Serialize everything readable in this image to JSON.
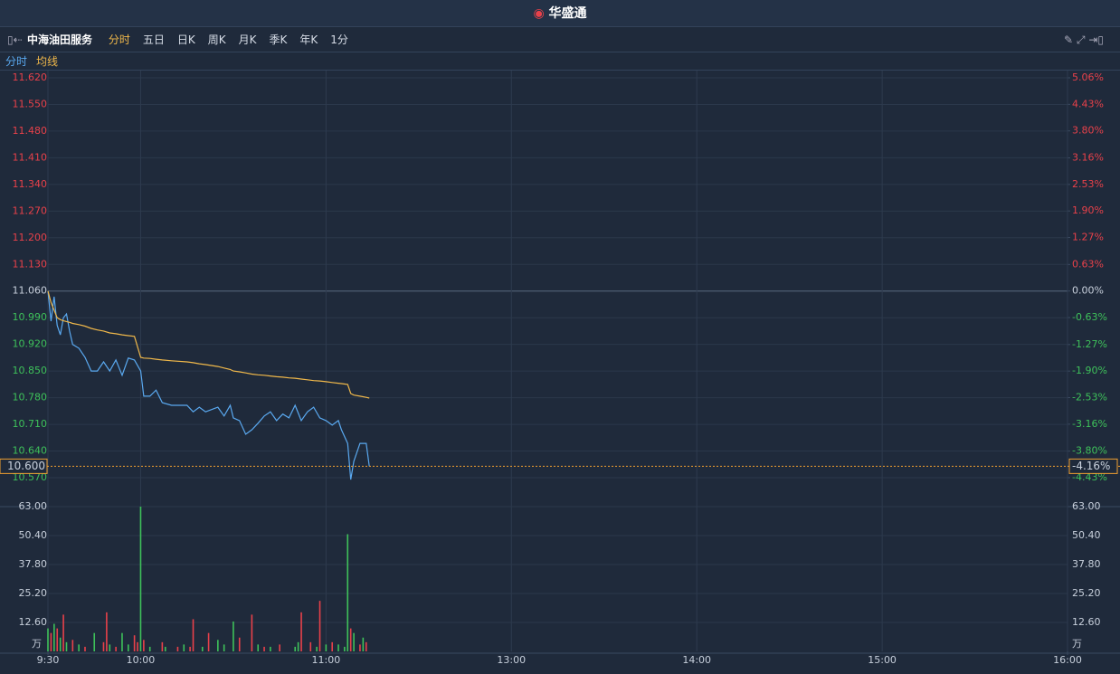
{
  "header": {
    "title": "华盛通"
  },
  "toolbar": {
    "stock": "中海油田服务",
    "tabs": [
      "分时",
      "五日",
      "日K",
      "周K",
      "月K",
      "季K",
      "年K",
      "1分"
    ],
    "active": 0
  },
  "chart_data": {
    "type": "line",
    "legend": [
      "分时",
      "均线"
    ],
    "x": [
      0,
      1,
      2,
      3,
      4,
      5,
      6,
      7,
      8,
      10,
      12,
      14,
      16,
      18,
      20,
      22,
      24,
      26,
      28,
      30,
      31,
      33,
      35,
      37,
      40,
      45,
      47,
      49,
      51,
      55,
      57,
      59,
      60,
      62,
      64,
      66,
      68,
      70,
      72,
      74,
      76,
      78,
      80,
      82,
      84,
      86,
      88,
      90,
      92,
      94,
      95,
      97,
      98,
      99,
      101,
      103,
      104
    ],
    "xlim": [
      0,
      330
    ],
    "xticks": [
      {
        "value": 0,
        "label": "9:30"
      },
      {
        "value": 30,
        "label": "10:00"
      },
      {
        "value": 90,
        "label": "11:00"
      },
      {
        "value": 150,
        "label": "13:00"
      },
      {
        "value": 210,
        "label": "14:00"
      },
      {
        "value": 270,
        "label": "15:00"
      },
      {
        "value": 330,
        "label": "16:00"
      }
    ],
    "series": [
      {
        "name": "分时",
        "color": "#5aa9f0",
        "values": [
          11.06,
          10.981,
          11.045,
          10.97,
          10.945,
          10.99,
          11.0,
          10.955,
          10.92,
          10.91,
          10.886,
          10.85,
          10.85,
          10.874,
          10.85,
          10.879,
          10.839,
          10.884,
          10.879,
          10.85,
          10.784,
          10.784,
          10.8,
          10.767,
          10.76,
          10.76,
          10.743,
          10.755,
          10.743,
          10.755,
          10.732,
          10.76,
          10.727,
          10.72,
          10.684,
          10.696,
          10.713,
          10.732,
          10.743,
          10.72,
          10.737,
          10.727,
          10.76,
          10.72,
          10.743,
          10.755,
          10.727,
          10.72,
          10.708,
          10.72,
          10.696,
          10.66,
          10.565,
          10.613,
          10.66,
          10.66,
          10.6
        ]
      },
      {
        "name": "均线",
        "color": "#f0b84a",
        "values": [
          11.06,
          11.03,
          11.01,
          10.99,
          10.985,
          10.982,
          10.98,
          10.978,
          10.975,
          10.972,
          10.968,
          10.962,
          10.958,
          10.955,
          10.95,
          10.948,
          10.945,
          10.943,
          10.941,
          10.886,
          10.884,
          10.883,
          10.881,
          10.879,
          10.877,
          10.874,
          10.872,
          10.869,
          10.867,
          10.862,
          10.858,
          10.854,
          10.85,
          10.848,
          10.845,
          10.842,
          10.84,
          10.839,
          10.837,
          10.835,
          10.834,
          10.832,
          10.831,
          10.829,
          10.827,
          10.825,
          10.824,
          10.822,
          10.82,
          10.818,
          10.817,
          10.815,
          10.791,
          10.787,
          10.784,
          10.781,
          10.779
        ]
      }
    ],
    "ylim": [
      10.57,
      11.62
    ],
    "yticks": [
      {
        "value": 11.62,
        "label": "11.620"
      },
      {
        "value": 11.55,
        "label": "11.550"
      },
      {
        "value": 11.48,
        "label": "11.480"
      },
      {
        "value": 11.41,
        "label": "11.410"
      },
      {
        "value": 11.34,
        "label": "11.340"
      },
      {
        "value": 11.27,
        "label": "11.270"
      },
      {
        "value": 11.2,
        "label": "11.200"
      },
      {
        "value": 11.13,
        "label": "11.130"
      },
      {
        "value": 11.06,
        "label": "11.060"
      },
      {
        "value": 10.99,
        "label": "10.990"
      },
      {
        "value": 10.92,
        "label": "10.920"
      },
      {
        "value": 10.85,
        "label": "10.850"
      },
      {
        "value": 10.78,
        "label": "10.780"
      },
      {
        "value": 10.71,
        "label": "10.710"
      },
      {
        "value": 10.64,
        "label": "10.640"
      },
      {
        "value": 10.57,
        "label": "10.570"
      }
    ],
    "y2lim": [
      -4.43,
      5.06
    ],
    "y2ticks": [
      {
        "value": 5.06,
        "label": "5.06%"
      },
      {
        "value": 4.43,
        "label": "4.43%"
      },
      {
        "value": 3.8,
        "label": "3.80%"
      },
      {
        "value": 3.16,
        "label": "3.16%"
      },
      {
        "value": 2.53,
        "label": "2.53%"
      },
      {
        "value": 1.9,
        "label": "1.90%"
      },
      {
        "value": 1.27,
        "label": "1.27%"
      },
      {
        "value": 0.63,
        "label": "0.63%"
      },
      {
        "value": 0,
        "label": "0.00%"
      },
      {
        "value": -0.63,
        "label": "-0.63%"
      },
      {
        "value": -1.27,
        "label": "-1.27%"
      },
      {
        "value": -1.9,
        "label": "-1.90%"
      },
      {
        "value": -2.53,
        "label": "-2.53%"
      },
      {
        "value": -3.16,
        "label": "-3.16%"
      },
      {
        "value": -3.8,
        "label": "-3.80%"
      },
      {
        "value": -4.43,
        "label": "-4.43%"
      }
    ],
    "last": {
      "price": {
        "value": 10.6,
        "label": "10.600"
      },
      "change": {
        "value": -4.16,
        "label": "-4.16%"
      }
    },
    "volume": {
      "unit": "万",
      "x": [
        0,
        1,
        2,
        3,
        4,
        5,
        6,
        8,
        10,
        12,
        15,
        18,
        19,
        20,
        22,
        24,
        26,
        28,
        29,
        30,
        31,
        33,
        37,
        38,
        42,
        44,
        46,
        47,
        50,
        52,
        55,
        57,
        60,
        62,
        66,
        68,
        70,
        72,
        75,
        80,
        81,
        82,
        85,
        87,
        88,
        90,
        92,
        94,
        96,
        97,
        98,
        99,
        101,
        102,
        103
      ],
      "values": [
        10,
        8,
        12,
        10,
        6,
        16,
        4,
        5,
        3,
        2,
        8,
        4,
        17,
        3,
        2,
        8,
        3,
        7,
        4,
        63,
        5,
        2,
        4,
        2,
        2,
        3,
        2,
        14,
        2,
        8,
        5,
        3,
        13,
        6,
        16,
        3,
        2,
        2,
        3,
        2,
        4,
        17,
        4,
        2,
        22,
        3,
        4,
        3,
        2,
        51,
        10,
        8,
        3,
        6,
        4
      ],
      "colors": [
        "#3ec15a",
        "#e8414a",
        "#3ec15a",
        "#e8414a",
        "#3ec15a",
        "#e8414a",
        "#3ec15a",
        "#e8414a",
        "#3ec15a",
        "#e8414a",
        "#3ec15a",
        "#e8414a",
        "#e8414a",
        "#3ec15a",
        "#e8414a",
        "#3ec15a",
        "#3ec15a",
        "#e8414a",
        "#e8414a",
        "#3ec15a",
        "#e8414a",
        "#3ec15a",
        "#e8414a",
        "#3ec15a",
        "#e8414a",
        "#3ec15a",
        "#e8414a",
        "#e8414a",
        "#3ec15a",
        "#e8414a",
        "#3ec15a",
        "#3ec15a",
        "#3ec15a",
        "#e8414a",
        "#e8414a",
        "#3ec15a",
        "#e8414a",
        "#3ec15a",
        "#e8414a",
        "#3ec15a",
        "#3ec15a",
        "#e8414a",
        "#e8414a",
        "#3ec15a",
        "#e8414a",
        "#3ec15a",
        "#e8414a",
        "#3ec15a",
        "#3ec15a",
        "#3ec15a",
        "#e8414a",
        "#3ec15a",
        "#e8414a",
        "#3ec15a",
        "#e8414a"
      ],
      "ylim": [
        0,
        63
      ],
      "yticks": [
        {
          "value": 63,
          "label": "63.00"
        },
        {
          "value": 50.4,
          "label": "50.40"
        },
        {
          "value": 37.8,
          "label": "37.80"
        },
        {
          "value": 25.2,
          "label": "25.20"
        },
        {
          "value": 12.6,
          "label": "12.60"
        }
      ]
    }
  }
}
